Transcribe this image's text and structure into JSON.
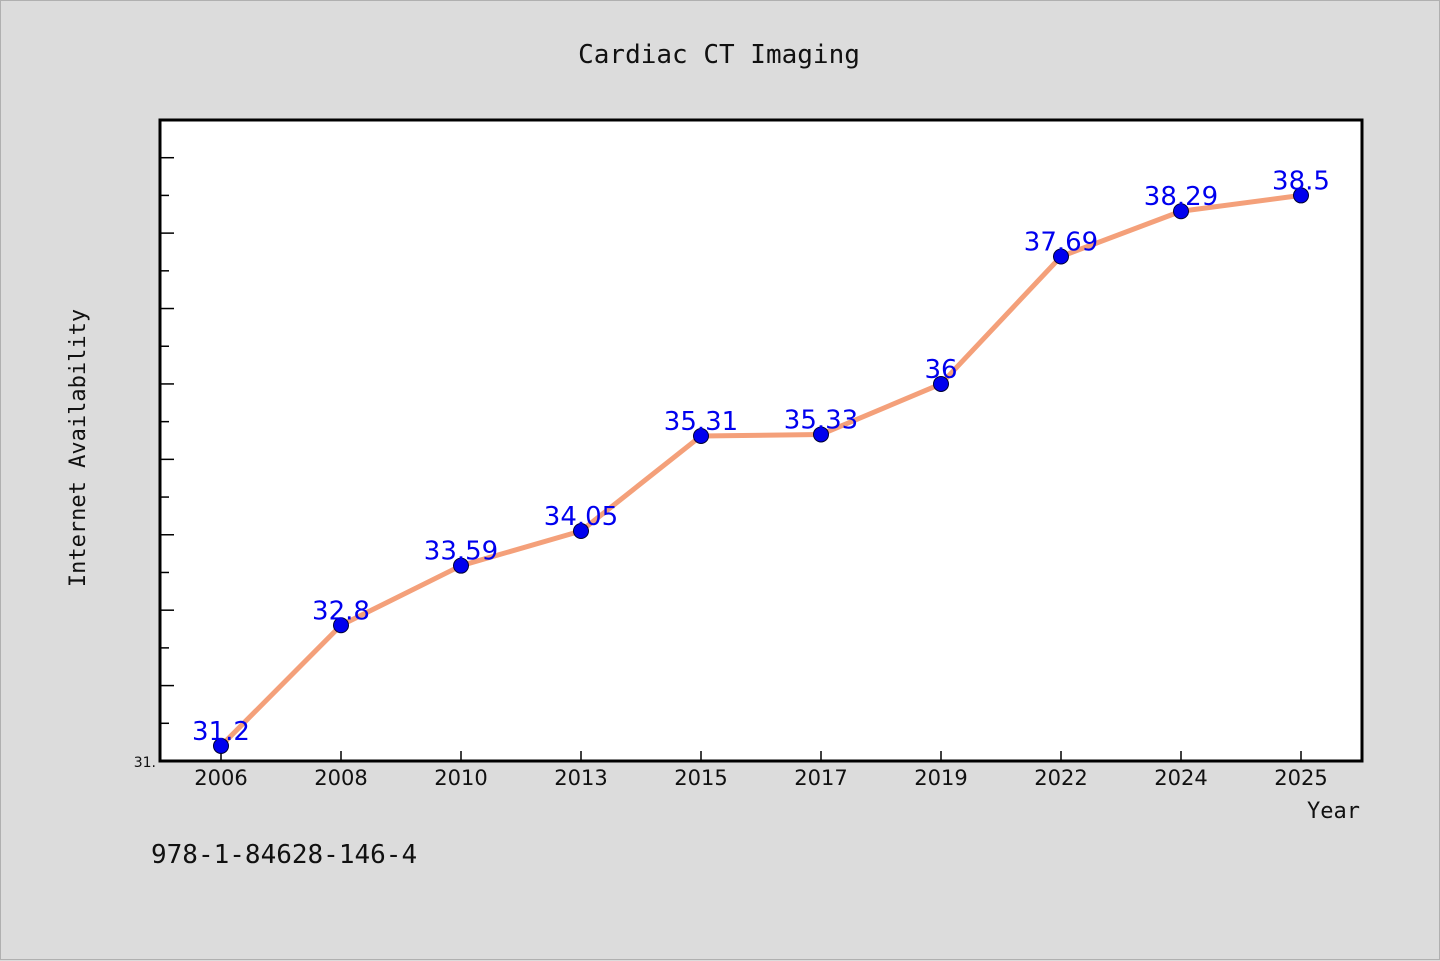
{
  "chart_data": {
    "type": "line",
    "title": "Cardiac CT Imaging",
    "xlabel": "Year",
    "ylabel": "Internet Availability",
    "categories": [
      "2006",
      "2008",
      "2010",
      "2013",
      "2015",
      "2017",
      "2019",
      "2022",
      "2024",
      "2025"
    ],
    "series": [
      {
        "values": [
          31.2,
          32.8,
          33.59,
          34.05,
          35.31,
          35.33,
          36,
          37.69,
          38.29,
          38.5
        ],
        "labels": [
          "31.2",
          "32.8",
          "33.59",
          "34.05",
          "35.31",
          "35.33",
          "36",
          "37.69",
          "38.29",
          "38.5"
        ]
      }
    ],
    "ylim": [
      31,
      39.5
    ],
    "y_tick_label": "31.",
    "line_color": "#f4a07a",
    "marker_color": "#0000ee",
    "label_color": "#0000ee",
    "grid": false
  },
  "footnote": "978-1-84628-146-4"
}
